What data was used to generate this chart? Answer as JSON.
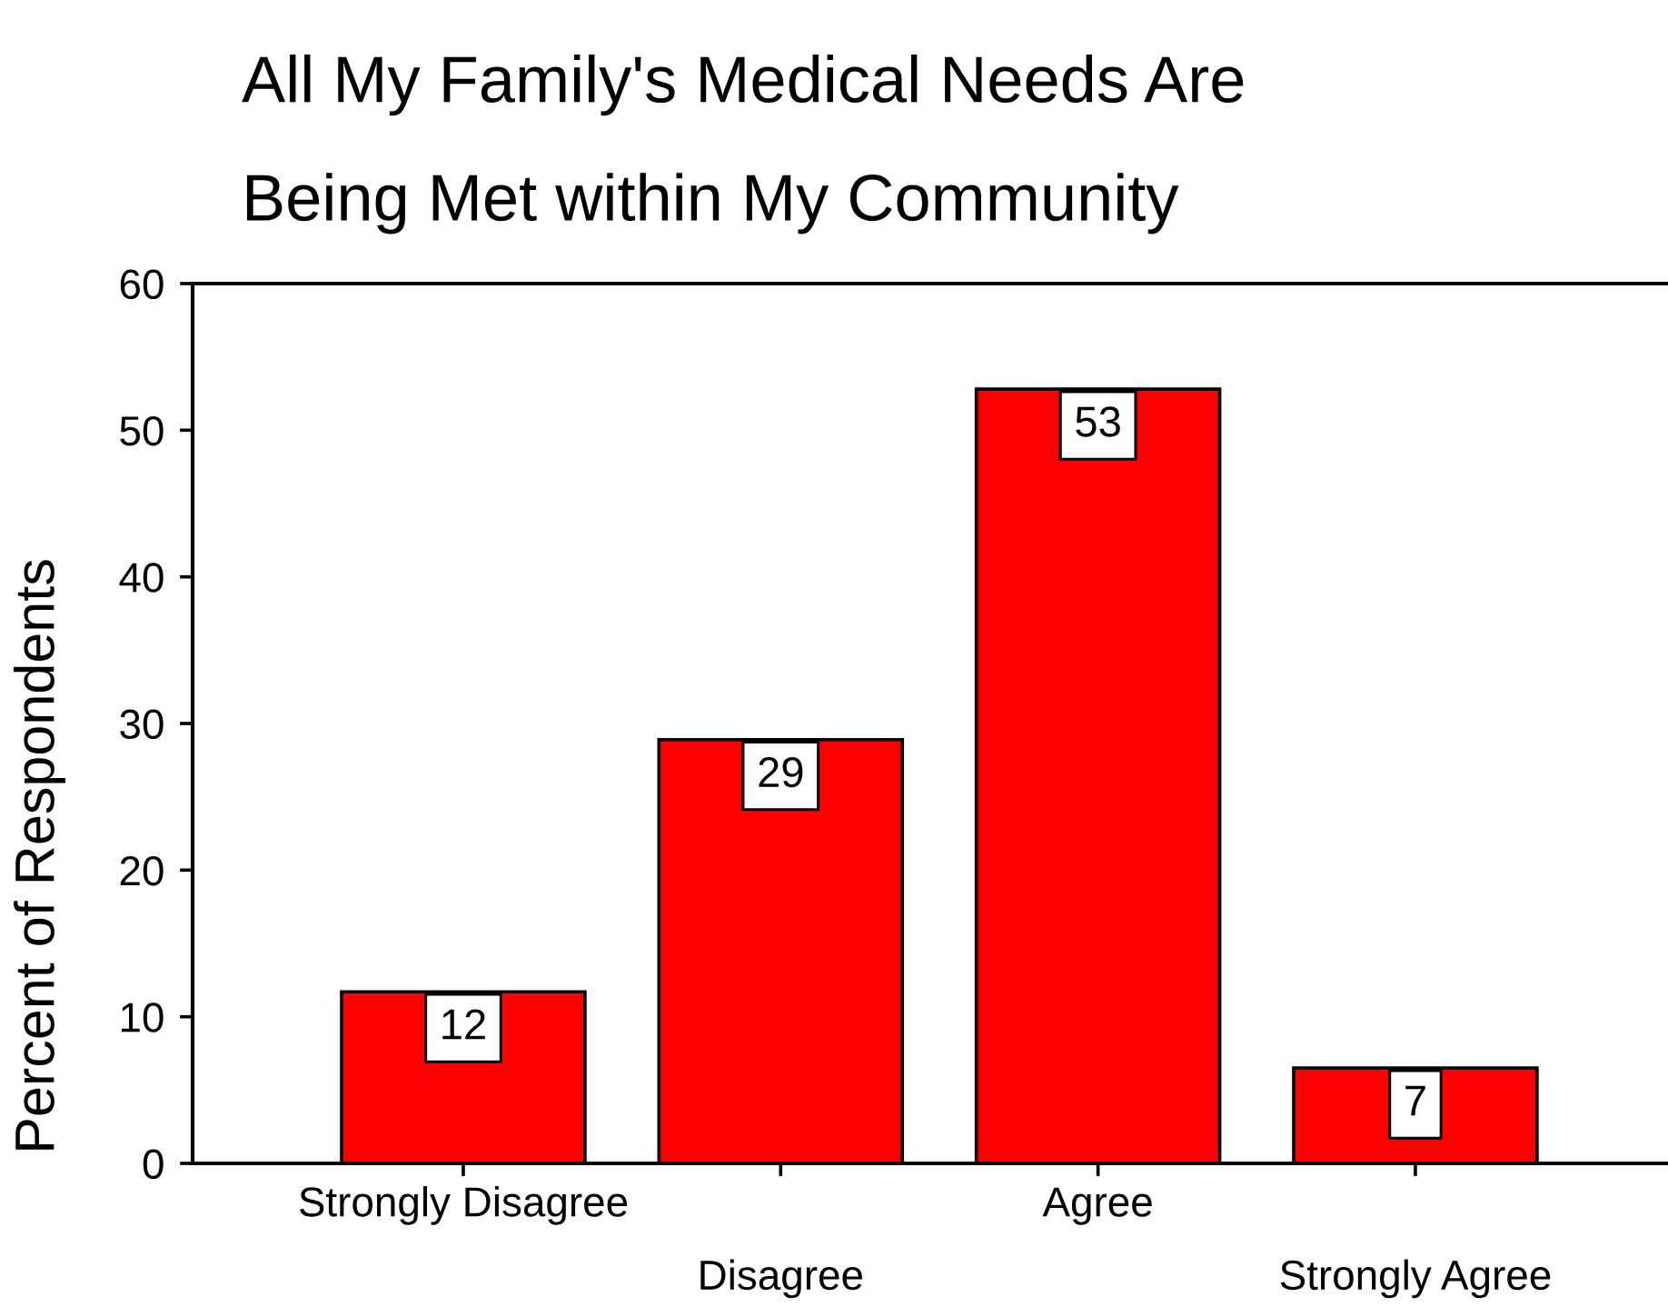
{
  "chart_data": {
    "type": "bar",
    "title": "All My Family's Medical Needs Are\nBeing Met within My Community",
    "ylabel": "Percent of Respondents",
    "categories": [
      "Strongly Disagree",
      "Disagree",
      "Agree",
      "Strongly Agree"
    ],
    "values": [
      11.7,
      28.9,
      52.8,
      6.5
    ],
    "value_labels": [
      "12",
      "29",
      "53",
      "7"
    ],
    "color": "#ff0000",
    "ylim": [
      0,
      60
    ],
    "yticks": [
      0,
      10,
      20,
      30,
      40,
      50,
      60
    ]
  }
}
